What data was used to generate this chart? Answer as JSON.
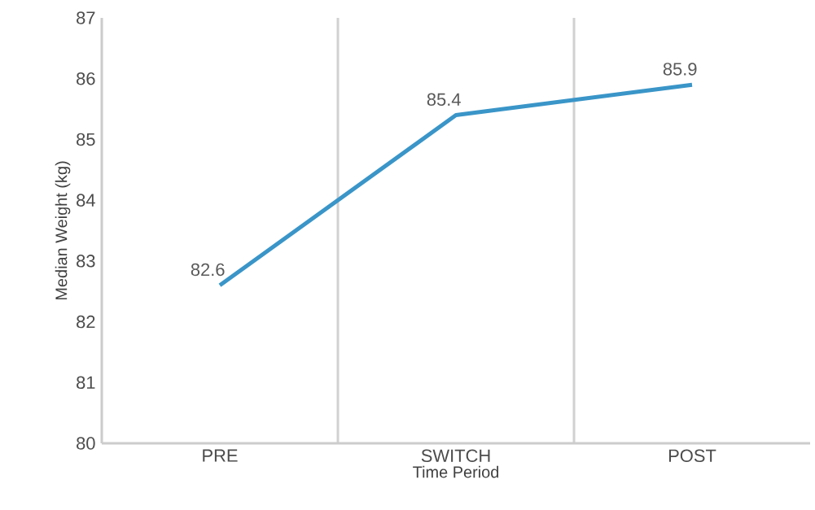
{
  "chart_data": {
    "type": "line",
    "xlabel": "Time Period",
    "ylabel": "Median Weight (kg)",
    "categories": [
      "PRE",
      "SWITCH",
      "POST"
    ],
    "values": [
      82.6,
      85.4,
      85.9
    ],
    "color": "#3a95c8",
    "ylim": [
      80,
      87
    ],
    "yticks": [
      80,
      81,
      82,
      83,
      84,
      85,
      86,
      87
    ],
    "grid": "x",
    "data_labels": true,
    "marker": "none",
    "line_style": "solid"
  }
}
